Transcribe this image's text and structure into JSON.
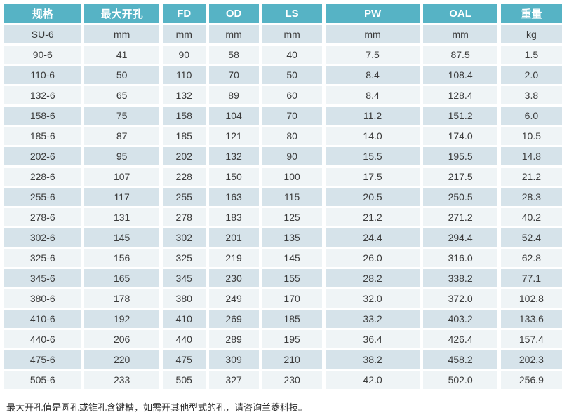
{
  "table": {
    "columns": [
      "规格",
      "最大开孔",
      "FD",
      "OD",
      "LS",
      "PW",
      "OAL",
      "重量"
    ],
    "column_keys": [
      "spec",
      "max-bore",
      "fd",
      "od",
      "ls",
      "pw",
      "oal",
      "weight"
    ],
    "unit_row": [
      "SU-6",
      "mm",
      "mm",
      "mm",
      "mm",
      "mm",
      "mm",
      "kg"
    ],
    "rows": [
      [
        "90-6",
        "41",
        "90",
        "58",
        "40",
        "7.5",
        "87.5",
        "1.5"
      ],
      [
        "110-6",
        "50",
        "110",
        "70",
        "50",
        "8.4",
        "108.4",
        "2.0"
      ],
      [
        "132-6",
        "65",
        "132",
        "89",
        "60",
        "8.4",
        "128.4",
        "3.8"
      ],
      [
        "158-6",
        "75",
        "158",
        "104",
        "70",
        "11.2",
        "151.2",
        "6.0"
      ],
      [
        "185-6",
        "87",
        "185",
        "121",
        "80",
        "14.0",
        "174.0",
        "10.5"
      ],
      [
        "202-6",
        "95",
        "202",
        "132",
        "90",
        "15.5",
        "195.5",
        "14.8"
      ],
      [
        "228-6",
        "107",
        "228",
        "150",
        "100",
        "17.5",
        "217.5",
        "21.2"
      ],
      [
        "255-6",
        "117",
        "255",
        "163",
        "115",
        "20.5",
        "250.5",
        "28.3"
      ],
      [
        "278-6",
        "131",
        "278",
        "183",
        "125",
        "21.2",
        "271.2",
        "40.2"
      ],
      [
        "302-6",
        "145",
        "302",
        "201",
        "135",
        "24.4",
        "294.4",
        "52.4"
      ],
      [
        "325-6",
        "156",
        "325",
        "219",
        "145",
        "26.0",
        "316.0",
        "62.8"
      ],
      [
        "345-6",
        "165",
        "345",
        "230",
        "155",
        "28.2",
        "338.2",
        "77.1"
      ],
      [
        "380-6",
        "178",
        "380",
        "249",
        "170",
        "32.0",
        "372.0",
        "102.8"
      ],
      [
        "410-6",
        "192",
        "410",
        "269",
        "185",
        "33.2",
        "403.2",
        "133.6"
      ],
      [
        "440-6",
        "206",
        "440",
        "289",
        "195",
        "36.4",
        "426.4",
        "157.4"
      ],
      [
        "475-6",
        "220",
        "475",
        "309",
        "210",
        "38.2",
        "458.2",
        "202.3"
      ],
      [
        "505-6",
        "233",
        "505",
        "327",
        "230",
        "42.0",
        "502.0",
        "256.9"
      ]
    ]
  },
  "footer_note": "最大开孔值是圆孔或锥孔含键槽，如需开其他型式的孔，请咨询兰菱科技。",
  "colors": {
    "header_bg": "#56b3c5",
    "header_text": "#ffffff",
    "row_blue_bg": "#d6e3ea",
    "row_light_bg": "#eff4f6",
    "cell_text": "#3b3b3b"
  }
}
